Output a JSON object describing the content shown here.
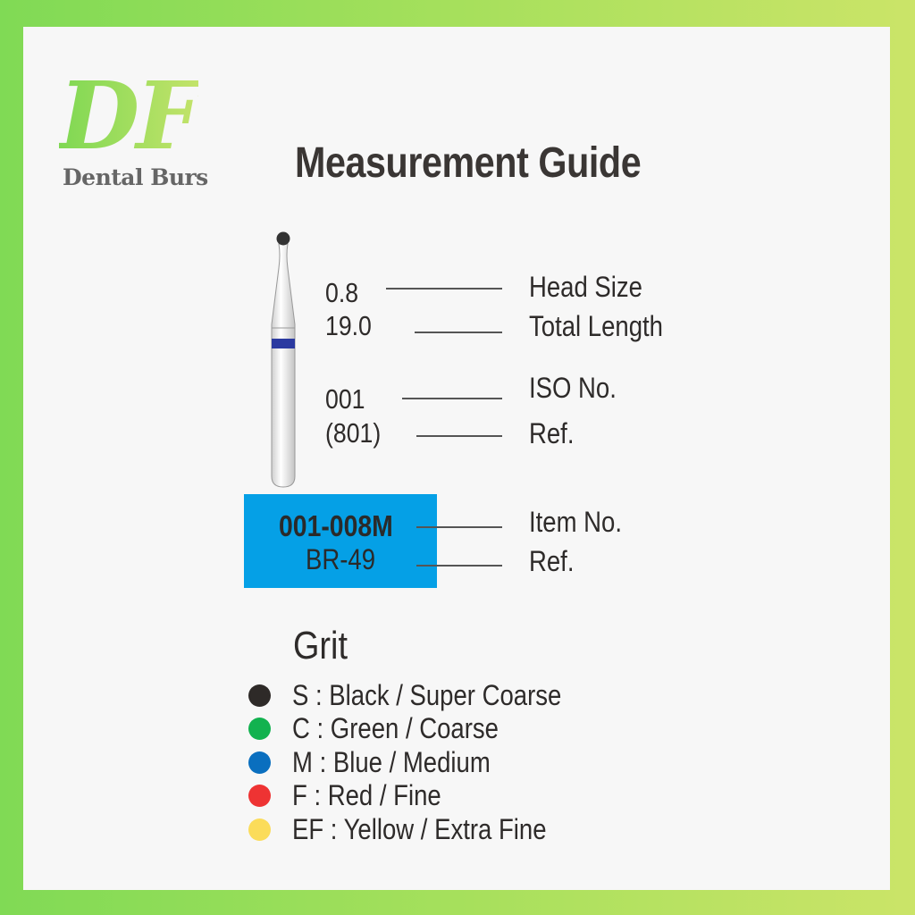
{
  "logo": {
    "mark": "DF",
    "subtitle": "Dental Burs"
  },
  "title": "Measurement Guide",
  "specs": [
    {
      "value": "0.8",
      "label": "Head Size"
    },
    {
      "value": "19.0",
      "label": "Total Length"
    },
    {
      "value": "001",
      "label": "ISO No."
    },
    {
      "value": "(801)",
      "label": "Ref."
    }
  ],
  "item": {
    "number": "001-008M",
    "number_label": "Item No.",
    "ref": "BR-49",
    "ref_label": "Ref.",
    "box_color": "#05a0e6"
  },
  "bur": {
    "band_color": "#2b3aa0",
    "head_color": "#333333"
  },
  "grit": {
    "title": "Grit",
    "items": [
      {
        "text": "S : Black / Super Coarse",
        "color": "#2e2a28"
      },
      {
        "text": "C : Green / Coarse",
        "color": "#12b24f"
      },
      {
        "text": "M : Blue / Medium",
        "color": "#0a6fbf"
      },
      {
        "text": "F : Red / Fine",
        "color": "#ee3333"
      },
      {
        "text": "EF : Yellow / Extra Fine",
        "color": "#fbdc5a"
      }
    ]
  }
}
